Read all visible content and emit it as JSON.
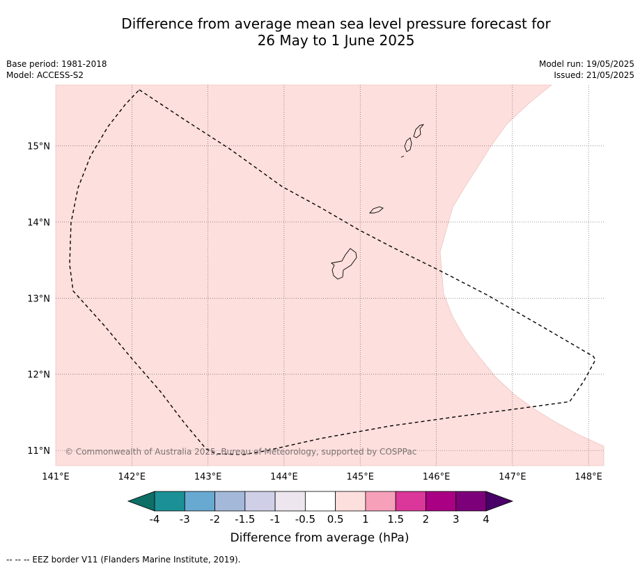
{
  "title_line1": "Difference from average mean sea level pressure forecast for",
  "title_line2": "26 May to 1 June 2025",
  "meta_left": {
    "base_period": "Base period: 1981-2018",
    "model": "Model: ACCESS-S2"
  },
  "meta_right": {
    "model_run": "Model run: 19/05/2025",
    "issued": "Issued: 21/05/2025"
  },
  "map": {
    "lon_range": [
      141.0,
      148.2
    ],
    "lat_range": [
      10.8,
      15.8
    ],
    "lon_ticks": [
      {
        "value": 141,
        "label": "141°E"
      },
      {
        "value": 142,
        "label": "142°E"
      },
      {
        "value": 143,
        "label": "143°E"
      },
      {
        "value": 144,
        "label": "144°E"
      },
      {
        "value": 145,
        "label": "145°E"
      },
      {
        "value": 146,
        "label": "146°E"
      },
      {
        "value": 147,
        "label": "147°E"
      },
      {
        "value": 148,
        "label": "148°E"
      }
    ],
    "lat_ticks": [
      {
        "value": 15,
        "label": "15°N"
      },
      {
        "value": 14,
        "label": "14°N"
      },
      {
        "value": 13,
        "label": "13°N"
      },
      {
        "value": 12,
        "label": "12°N"
      },
      {
        "value": 11,
        "label": "11°N"
      }
    ],
    "anomaly_fill_color": "#fddfdd",
    "anomaly_band": "0.5 to 1",
    "copyright": "© Commonwealth of Australia 2025, Bureau of Meteorology, supported by COSPPac"
  },
  "colorbar": {
    "colors": [
      "#0e6f66",
      "#1b9197",
      "#68a9d2",
      "#a4b9da",
      "#cfd0e8",
      "#eee6ee",
      "#ffffff",
      "#fddfdd",
      "#f7a0ba",
      "#db3699",
      "#aa0083",
      "#7c007a",
      "#490068"
    ],
    "tick_labels": [
      "-4",
      "-3",
      "-2",
      "-1.5",
      "-1",
      "-0.5",
      "0.5",
      "1",
      "1.5",
      "2",
      "3",
      "4"
    ],
    "title": "Difference from average (hPa)"
  },
  "footnote": "--  --  -- EEZ border V11 (Flanders Marine Institute, 2019)."
}
